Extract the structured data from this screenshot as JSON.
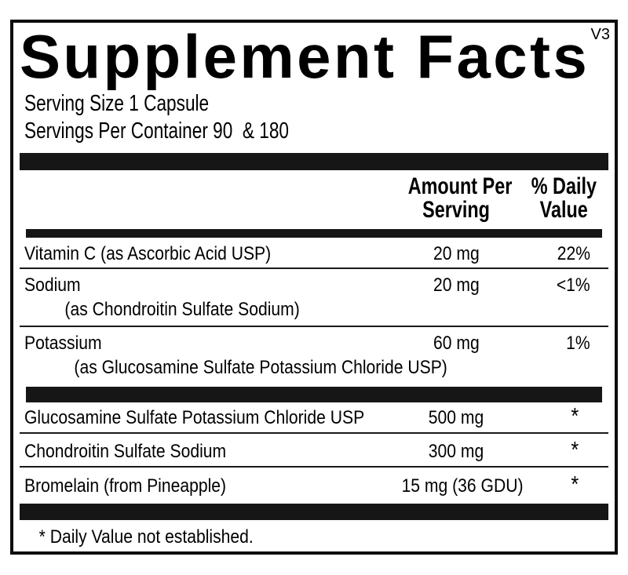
{
  "version_tag": "V3",
  "title": "Supplement Facts",
  "serving": {
    "size_line": "Serving Size 1 Capsule",
    "per_container_line": "Servings Per Container 90  & 180"
  },
  "columns": {
    "amount_line1": "Amount Per",
    "amount_line2": "Serving",
    "dv_line1": "% Daily",
    "dv_line2": "Value"
  },
  "nutrient_rows": [
    {
      "name": "Vitamin C (as Ascorbic Acid USP)",
      "sub": "",
      "amount": "20 mg",
      "dv": "22%"
    },
    {
      "name": "Sodium",
      "sub": "(as Chondroitin Sulfate Sodium)",
      "amount": "20 mg",
      "dv": "<1%"
    },
    {
      "name": "Potassium",
      "sub": "(as Glucosamine Sulfate Potassium Chloride USP)",
      "amount": "60 mg",
      "dv": "1%"
    }
  ],
  "ingredient_rows": [
    {
      "name": "Glucosamine Sulfate Potassium Chloride USP",
      "amount": "500 mg",
      "dv": "*"
    },
    {
      "name": "Chondroitin Sulfate Sodium",
      "amount": "300 mg",
      "dv": "*"
    },
    {
      "name": "Bromelain (from Pineapple)",
      "amount": "15 mg (36 GDU)",
      "dv": "*"
    }
  ],
  "footnote": "* Daily Value not established."
}
